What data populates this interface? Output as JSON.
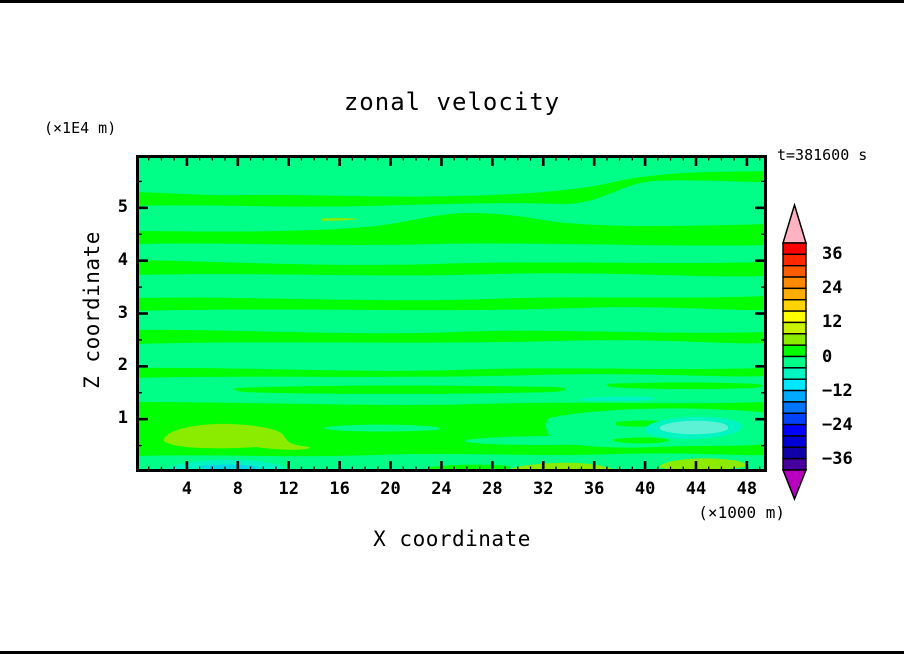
{
  "header": {
    "title": "zonal velocity",
    "timestamp": "t=381600 s"
  },
  "axes": {
    "x": {
      "label": "X coordinate",
      "unit": "(×1000 m)",
      "tick_values": [
        4,
        8,
        12,
        16,
        20,
        24,
        28,
        32,
        36,
        40,
        44,
        48
      ],
      "tick_labels": [
        "4",
        "8",
        "12",
        "16",
        "20",
        "24",
        "28",
        "32",
        "36",
        "40",
        "44",
        "48"
      ],
      "minor_tick_step": 1,
      "range": [
        0,
        49.5
      ]
    },
    "y": {
      "label": "Z coordinate",
      "unit": "(×1E4 m)",
      "tick_values": [
        1,
        2,
        3,
        4,
        5
      ],
      "tick_labels": [
        "1",
        "2",
        "3",
        "4",
        "5"
      ],
      "minor_tick_step": 0.5,
      "range": [
        0,
        6
      ]
    }
  },
  "colorbar": {
    "tick_labels": [
      "36",
      "24",
      "12",
      "0",
      "−12",
      "−24",
      "−36"
    ],
    "cell_value_step": 4,
    "range": [
      -40,
      40
    ],
    "cells": [
      "#FF0000",
      "#FF2800",
      "#FF5C00",
      "#FF8A00",
      "#FFAD00",
      "#FFD300",
      "#FFFF00",
      "#C8F200",
      "#8CEC00",
      "#00FF00",
      "#00FF87",
      "#00F5C0",
      "#00E8FF",
      "#00ABFF",
      "#0075FF",
      "#0042FF",
      "#0000FF",
      "#0000D6",
      "#0F00A8",
      "#46009E"
    ],
    "over_arrow_color": "#FFB3C2",
    "under_arrow_color": "#B800BE"
  },
  "field_colors": {
    "pos_0_4": "#00FF00",
    "neg_4_0": "#00FF87",
    "pos_4_8": "#8CEC00",
    "neg_8_4": "#00F5C0",
    "neg_8_4_core": "#5CF2D6",
    "neg_12_8": "#00D9E6"
  },
  "chart_data": {
    "type": "filled_contour",
    "title": "zonal velocity",
    "time": "t=381600 s",
    "xlabel": "X coordinate",
    "xunit": "×1000 m",
    "xlim": [
      0,
      49.5
    ],
    "ylabel": "Z coordinate",
    "yunit": "×1E4 m",
    "ylim": [
      0,
      6
    ],
    "contour_interval": 4,
    "labeled_levels": [
      36,
      24,
      12,
      0,
      -12,
      -24,
      -36
    ],
    "colorbar_range": [
      -40,
      40
    ],
    "legend_position": "right-vertical-colorbar",
    "grid": false,
    "summary": "Horizontally banded zonal-velocity field; almost the whole domain alternates between the 0..4 band (bright green) and the -4..0 band (spring green) in wavy horizontal stripes.",
    "features": [
      {
        "band": "0..4",
        "color": "#00FF00",
        "extent": "background and wavy stripes over full domain"
      },
      {
        "band": "-4..0",
        "color": "#00FF87",
        "extent": "about 10 wavy horizontal stripes spanning full width"
      },
      {
        "band": "4..8",
        "color": "#8CEC00",
        "regions": [
          {
            "x": [
              14.6,
              17.4
            ],
            "z": [
              4.75,
              4.85
            ]
          },
          {
            "x": [
              1.7,
              11.5
            ],
            "z": [
              0.42,
              0.93
            ]
          },
          {
            "x": [
              29.0,
              37.4
            ],
            "z": [
              0.02,
              0.18
            ]
          },
          {
            "x": [
              41.0,
              48.1
            ],
            "z": [
              0.04,
              0.28
            ]
          }
        ]
      },
      {
        "band": "-8..-4",
        "color": "#00F5C0",
        "regions": [
          {
            "x": [
              2.1,
              11.7
            ],
            "z": [
              0.04,
              0.23
            ]
          },
          {
            "x": [
              40.0,
              47.8
            ],
            "z": [
              0.62,
              1.04
            ]
          },
          {
            "x": [
              34.9,
              40.8
            ],
            "z": [
              1.34,
              1.46
            ]
          }
        ]
      },
      {
        "band": "-12..-8",
        "color": "#00D9E6",
        "regions": [
          {
            "x": [
              5.0,
              9.9
            ],
            "z": [
              0.06,
              0.15
            ]
          }
        ]
      }
    ]
  }
}
